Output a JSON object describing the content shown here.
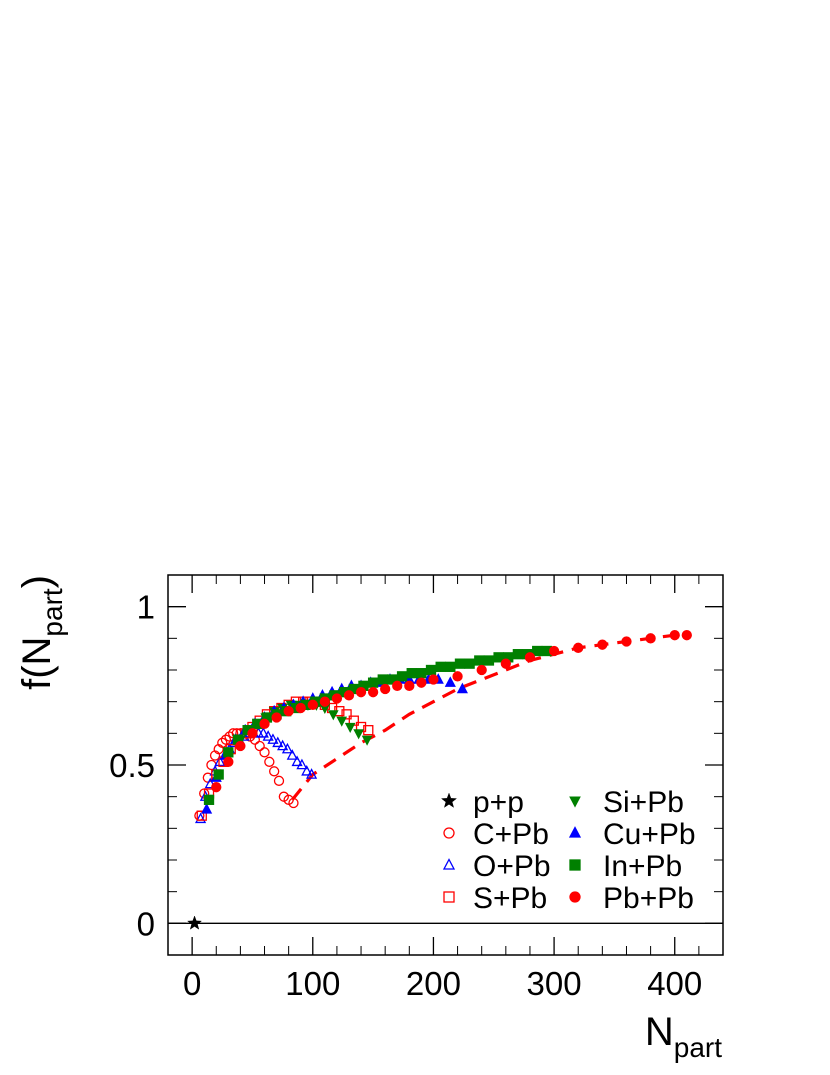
{
  "chart_data": {
    "type": "scatter",
    "title": "",
    "xlabel": {
      "main": "N",
      "sub": "part"
    },
    "ylabel": {
      "main": "f(N",
      "sub": "part",
      "close": ")"
    },
    "xlim": [
      -20,
      440
    ],
    "ylim": [
      -0.1,
      1.1
    ],
    "xticks": [
      0,
      100,
      200,
      300,
      400
    ],
    "xtick_labels": [
      "0",
      "100",
      "200",
      "300",
      "400"
    ],
    "yticks": [
      0,
      0.5,
      1
    ],
    "ytick_labels": [
      "0",
      "0.5",
      "1"
    ],
    "zero_line": true,
    "legend_position": "bottom-right",
    "series": [
      {
        "name": "p+p",
        "marker": "star",
        "color": "#000000",
        "x": [
          2
        ],
        "y": [
          0.0
        ]
      },
      {
        "name": "C+Pb",
        "marker": "circle-open",
        "color": "#ff0000",
        "x": [
          6,
          10,
          13,
          16,
          19,
          22,
          25,
          28,
          31,
          34,
          37,
          40,
          44,
          48,
          52,
          56,
          60,
          64,
          68,
          72,
          76,
          80,
          84
        ],
        "y": [
          0.34,
          0.41,
          0.46,
          0.5,
          0.53,
          0.55,
          0.57,
          0.58,
          0.59,
          0.6,
          0.6,
          0.6,
          0.6,
          0.59,
          0.58,
          0.56,
          0.54,
          0.51,
          0.48,
          0.45,
          0.4,
          0.39,
          0.38
        ]
      },
      {
        "name": "O+Pb",
        "marker": "triangle-open",
        "color": "#0000ff",
        "x": [
          7,
          11,
          15,
          19,
          23,
          27,
          31,
          35,
          39,
          43,
          47,
          51,
          55,
          59,
          63,
          67,
          71,
          75,
          79,
          83,
          87,
          91,
          95,
          99
        ],
        "y": [
          0.33,
          0.4,
          0.44,
          0.48,
          0.51,
          0.53,
          0.55,
          0.57,
          0.58,
          0.59,
          0.6,
          0.6,
          0.6,
          0.6,
          0.59,
          0.58,
          0.57,
          0.56,
          0.55,
          0.53,
          0.51,
          0.5,
          0.48,
          0.47
        ]
      },
      {
        "name": "S+Pb",
        "marker": "square-open",
        "color": "#ff0000",
        "x": [
          8,
          14,
          20,
          26,
          32,
          38,
          44,
          50,
          56,
          62,
          68,
          74,
          80,
          86,
          92,
          98,
          104,
          110,
          116,
          122,
          128,
          134,
          140,
          146
        ],
        "y": [
          0.34,
          0.41,
          0.47,
          0.51,
          0.55,
          0.58,
          0.6,
          0.62,
          0.64,
          0.66,
          0.67,
          0.68,
          0.69,
          0.7,
          0.7,
          0.7,
          0.7,
          0.69,
          0.68,
          0.67,
          0.66,
          0.64,
          0.62,
          0.61
        ]
      },
      {
        "name": "Si+Pb",
        "marker": "triangle-down",
        "color": "#008000",
        "x": [
          40,
          47,
          54,
          61,
          68,
          75,
          82,
          89,
          96,
          103,
          110,
          117,
          124,
          131,
          138,
          145
        ],
        "y": [
          0.58,
          0.61,
          0.63,
          0.65,
          0.67,
          0.68,
          0.69,
          0.69,
          0.69,
          0.69,
          0.68,
          0.66,
          0.64,
          0.62,
          0.6,
          0.58
        ]
      },
      {
        "name": "Cu+Pb",
        "marker": "triangle",
        "color": "#0000ff",
        "x": [
          12,
          20,
          28,
          36,
          44,
          52,
          60,
          68,
          76,
          84,
          92,
          100,
          108,
          116,
          124,
          132,
          140,
          148,
          156,
          164,
          172,
          180,
          188,
          196,
          204,
          214,
          224
        ],
        "y": [
          0.36,
          0.46,
          0.53,
          0.58,
          0.61,
          0.63,
          0.65,
          0.67,
          0.68,
          0.69,
          0.7,
          0.71,
          0.72,
          0.73,
          0.74,
          0.75,
          0.75,
          0.76,
          0.76,
          0.77,
          0.77,
          0.77,
          0.77,
          0.77,
          0.77,
          0.76,
          0.74
        ]
      },
      {
        "name": "In+Pb",
        "marker": "square",
        "color": "#008000",
        "x": [
          14,
          22,
          30,
          38,
          46,
          54,
          62,
          70,
          78,
          86,
          94,
          102,
          110,
          118,
          126,
          134,
          142,
          150,
          158,
          166,
          174,
          182,
          190,
          198,
          206,
          214,
          222,
          230,
          238,
          246,
          254,
          262,
          270,
          278,
          286,
          294
        ],
        "y": [
          0.39,
          0.47,
          0.54,
          0.58,
          0.61,
          0.63,
          0.65,
          0.66,
          0.67,
          0.68,
          0.69,
          0.7,
          0.71,
          0.72,
          0.73,
          0.74,
          0.75,
          0.76,
          0.77,
          0.77,
          0.78,
          0.79,
          0.79,
          0.8,
          0.81,
          0.81,
          0.82,
          0.82,
          0.83,
          0.83,
          0.84,
          0.84,
          0.85,
          0.85,
          0.86,
          0.86
        ]
      },
      {
        "name": "Pb+Pb",
        "marker": "circle",
        "color": "#ff0000",
        "x": [
          20,
          30,
          40,
          50,
          60,
          70,
          80,
          90,
          100,
          110,
          120,
          130,
          140,
          150,
          160,
          170,
          180,
          190,
          200,
          220,
          240,
          260,
          280,
          300,
          320,
          340,
          360,
          380,
          400,
          410
        ],
        "y": [
          0.43,
          0.51,
          0.56,
          0.6,
          0.63,
          0.65,
          0.67,
          0.68,
          0.69,
          0.7,
          0.71,
          0.72,
          0.73,
          0.73,
          0.74,
          0.75,
          0.75,
          0.76,
          0.77,
          0.78,
          0.8,
          0.82,
          0.84,
          0.86,
          0.87,
          0.88,
          0.89,
          0.9,
          0.91,
          0.91
        ]
      }
    ],
    "dashed_curve": {
      "color": "#ff0000",
      "x": [
        83,
        100,
        120,
        140,
        160,
        180,
        200,
        220,
        240,
        260,
        280,
        300,
        320,
        340,
        360,
        380,
        400,
        410
      ],
      "y": [
        0.39,
        0.47,
        0.52,
        0.57,
        0.61,
        0.66,
        0.7,
        0.74,
        0.77,
        0.8,
        0.83,
        0.85,
        0.87,
        0.88,
        0.89,
        0.9,
        0.91,
        0.92
      ]
    }
  }
}
